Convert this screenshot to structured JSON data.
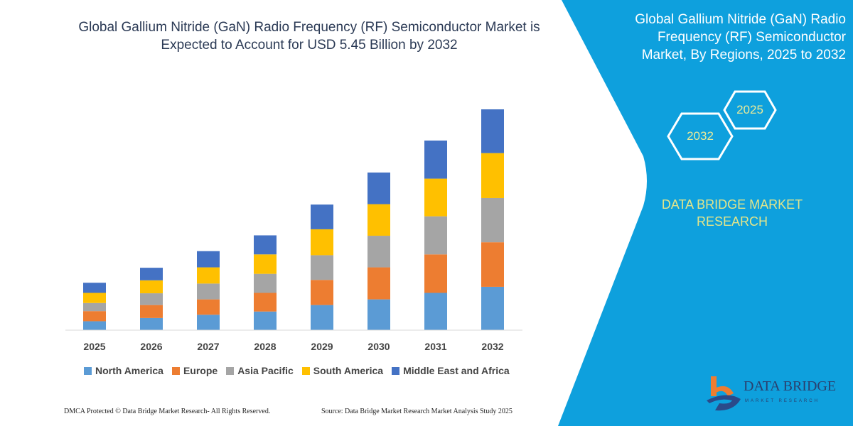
{
  "header": {
    "title_line1": "Global Gallium Nitride (GaN) Radio Frequency (RF) Semiconductor Market is",
    "title_line2": "Expected to Account for USD 5.45 Billion by 2032"
  },
  "side_panel": {
    "title_line1": "Global Gallium Nitride (GaN) Radio",
    "title_line2": "Frequency (RF) Semiconductor",
    "title_line3": "Market, By Regions, 2025 to 2032",
    "hex_start": "2025",
    "hex_end": "2032",
    "brand_line1": "DATA BRIDGE MARKET",
    "brand_line2": "RESEARCH",
    "logo_text": "DATA BRIDGE",
    "logo_subtext": "MARKET RESEARCH",
    "color": "#0ea0dd"
  },
  "footer": {
    "copyright": "DMCA Protected © Data Bridge Market Research-  All Rights Reserved.",
    "source": "Source: Data Bridge Market Research  Market Analysis Study 2025"
  },
  "chart_data": {
    "type": "bar",
    "stacked": true,
    "title": "",
    "xlabel": "",
    "ylabel": "",
    "ylim": [
      0,
      5.5
    ],
    "y_axis_visible": false,
    "grid": false,
    "legend_position": "bottom",
    "categories": [
      "2025",
      "2026",
      "2027",
      "2028",
      "2029",
      "2030",
      "2031",
      "2032"
    ],
    "series": [
      {
        "name": "North America",
        "color": "#5b9bd5",
        "values": [
          0.22,
          0.3,
          0.38,
          0.46,
          0.62,
          0.76,
          0.92,
          1.07
        ]
      },
      {
        "name": "Europe",
        "color": "#ed7d31",
        "values": [
          0.25,
          0.32,
          0.38,
          0.46,
          0.62,
          0.79,
          0.95,
          1.1
        ]
      },
      {
        "name": "Asia Pacific",
        "color": "#a5a5a5",
        "values": [
          0.2,
          0.29,
          0.39,
          0.47,
          0.61,
          0.78,
          0.94,
          1.09
        ]
      },
      {
        "name": "South America",
        "color": "#ffc000",
        "values": [
          0.25,
          0.32,
          0.4,
          0.48,
          0.64,
          0.78,
          0.93,
          1.11
        ]
      },
      {
        "name": "Middle East and Africa",
        "color": "#4472c4",
        "values": [
          0.25,
          0.31,
          0.4,
          0.47,
          0.61,
          0.78,
          0.94,
          1.08
        ]
      }
    ]
  }
}
